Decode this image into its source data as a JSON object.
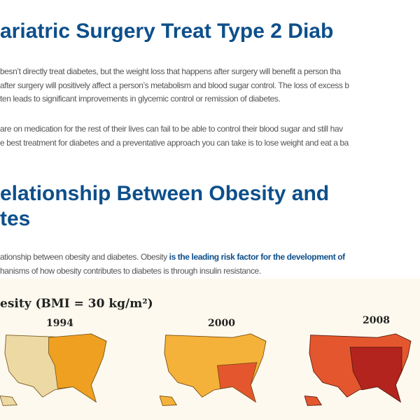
{
  "article": {
    "heading1": "ariatric Surgery Treat Type 2 Diab",
    "para1": [
      "besn’t directly treat diabetes, but the weight loss that happens after surgery will benefit a person tha",
      "after surgery will positively affect a person’s metabolism and blood sugar control. The loss of excess b",
      "ten leads to significant improvements in glycemic control or remission of diabetes."
    ],
    "para2": [
      "are on medication for the rest of their lives can fail to be able to control their blood sugar and still hav",
      "e best treatment for diabetes and a preventative approach you can take is to lose weight and eat a ba"
    ],
    "heading2": [
      "elationship Between Obesity and",
      "tes"
    ],
    "para3": {
      "line1_text": "ationship between obesity and diabetes. Obesity ",
      "line1_link": "is the leading risk factor for the development of",
      "line2": "hanisms of how obesity contributes to diabetes is through insulin resistance."
    }
  },
  "figure": {
    "title": "esity (BMI = 30 kg/m²)",
    "years": [
      "1994",
      "2000",
      "2008"
    ],
    "colors": {
      "low": "#ecd9a4",
      "mid": "#f0a020",
      "high": "#e4572e",
      "top": "#b3241e"
    }
  }
}
